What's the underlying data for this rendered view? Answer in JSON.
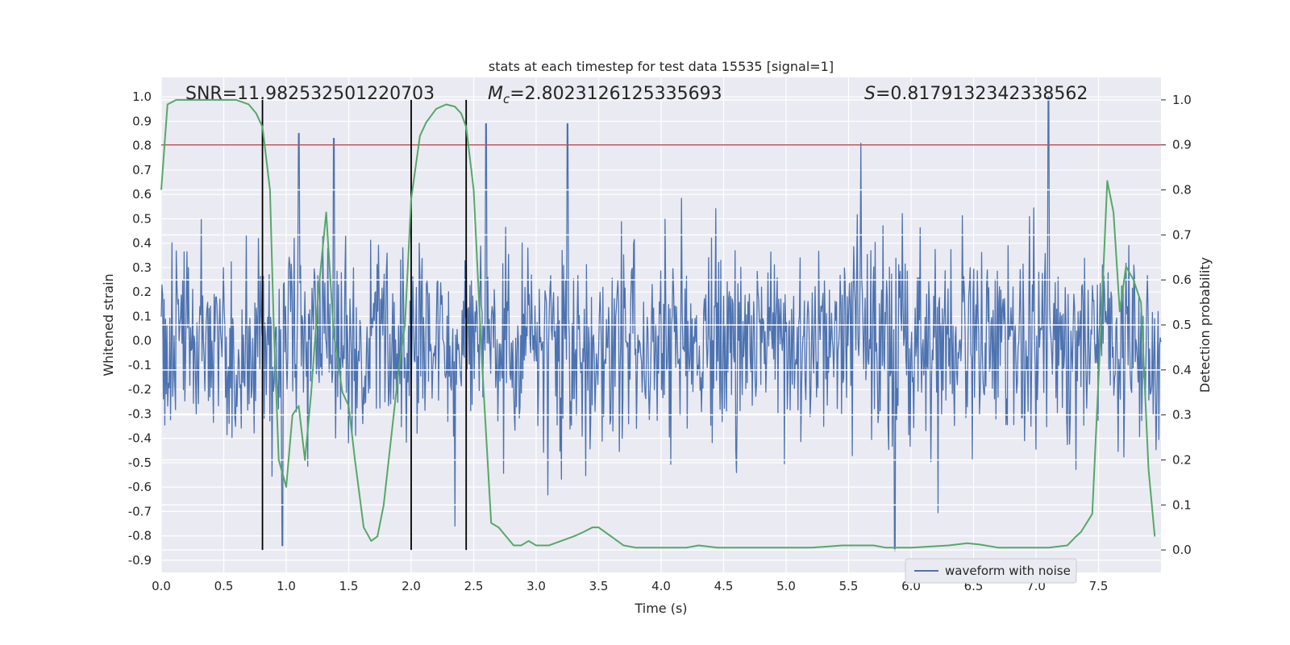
{
  "chart_data": {
    "type": "line",
    "title": "stats at each timestep for test data 15535 [signal=1]",
    "xlabel": "Time (s)",
    "ylabel_left": "Whitened strain",
    "ylabel_right": "Detection probability",
    "xlim": [
      0.0,
      8.0
    ],
    "ylim_left": [
      -0.95,
      1.08
    ],
    "ylim_right": [
      -0.05,
      1.05
    ],
    "x_ticks": [
      "0.0",
      "0.5",
      "1.0",
      "1.5",
      "2.0",
      "2.5",
      "3.0",
      "3.5",
      "4.0",
      "4.5",
      "5.0",
      "5.5",
      "6.0",
      "6.5",
      "7.0",
      "7.5"
    ],
    "y_ticks_left": [
      "1.0",
      "0.9",
      "0.8",
      "0.7",
      "0.6",
      "0.5",
      "0.4",
      "0.3",
      "0.2",
      "0.1",
      "0.0",
      "-0.1",
      "-0.2",
      "-0.3",
      "-0.4",
      "-0.5",
      "-0.6",
      "-0.7",
      "-0.8",
      "-0.9"
    ],
    "y_ticks_right": [
      "1.0",
      "0.9",
      "0.8",
      "0.7",
      "0.6",
      "0.5",
      "0.4",
      "0.3",
      "0.2",
      "0.1",
      "0.0"
    ],
    "annotations": {
      "snr": "SNR=11.982532501220703",
      "mc_symbol": "M",
      "mc_sub": "c",
      "mc_value": "=2.8023126125335693",
      "s_symbol": "S",
      "s_value": "=0.8179132342338562"
    },
    "threshold_probability": 0.9,
    "vertical_lines_time": [
      0.81,
      2.0,
      2.44
    ],
    "waveform": {
      "name": "waveform with noise",
      "color": "#4c72b0",
      "amplitude_peak": 1.0,
      "amplitude_min": -0.86,
      "n_samples": 1400,
      "peak_times": [
        1.1,
        1.38,
        2.6,
        3.25,
        5.6,
        7.1
      ],
      "peak_values": [
        0.85,
        0.83,
        0.89,
        0.89,
        0.81,
        1.0
      ],
      "trough_times": [
        0.97,
        2.35,
        5.87
      ],
      "trough_values": [
        -0.84,
        -0.76,
        -0.86
      ]
    },
    "probability": {
      "color": "#55a868",
      "t": [
        0.0,
        0.05,
        0.12,
        0.2,
        0.3,
        0.4,
        0.5,
        0.6,
        0.7,
        0.76,
        0.81,
        0.87,
        0.9,
        0.94,
        1.0,
        1.05,
        1.1,
        1.15,
        1.2,
        1.26,
        1.32,
        1.38,
        1.45,
        1.5,
        1.55,
        1.62,
        1.68,
        1.73,
        1.78,
        1.84,
        1.9,
        1.95,
        2.0,
        2.07,
        2.12,
        2.2,
        2.28,
        2.35,
        2.4,
        2.44,
        2.5,
        2.57,
        2.64,
        2.7,
        2.76,
        2.82,
        2.88,
        2.94,
        3.0,
        3.1,
        3.2,
        3.3,
        3.38,
        3.45,
        3.5,
        3.6,
        3.7,
        3.8,
        4.0,
        4.2,
        4.3,
        4.45,
        4.6,
        4.8,
        5.0,
        5.2,
        5.45,
        5.6,
        5.7,
        5.8,
        5.9,
        6.0,
        6.3,
        6.45,
        6.55,
        6.7,
        6.9,
        7.1,
        7.25,
        7.32,
        7.36,
        7.45,
        7.52,
        7.57,
        7.62,
        7.67,
        7.72,
        7.78,
        7.84,
        7.9,
        7.95
      ],
      "p": [
        0.8,
        0.99,
        1.0,
        1.0,
        1.0,
        1.0,
        1.0,
        1.0,
        0.99,
        0.97,
        0.94,
        0.8,
        0.5,
        0.2,
        0.14,
        0.3,
        0.32,
        0.2,
        0.35,
        0.58,
        0.75,
        0.48,
        0.35,
        0.32,
        0.2,
        0.05,
        0.02,
        0.03,
        0.1,
        0.25,
        0.4,
        0.5,
        0.78,
        0.92,
        0.95,
        0.98,
        0.99,
        0.985,
        0.97,
        0.94,
        0.8,
        0.4,
        0.06,
        0.05,
        0.03,
        0.01,
        0.01,
        0.02,
        0.01,
        0.01,
        0.02,
        0.03,
        0.04,
        0.05,
        0.05,
        0.03,
        0.01,
        0.005,
        0.005,
        0.005,
        0.01,
        0.005,
        0.005,
        0.005,
        0.005,
        0.005,
        0.01,
        0.01,
        0.01,
        0.005,
        0.005,
        0.005,
        0.01,
        0.015,
        0.012,
        0.005,
        0.005,
        0.005,
        0.01,
        0.03,
        0.04,
        0.08,
        0.5,
        0.82,
        0.75,
        0.53,
        0.63,
        0.6,
        0.55,
        0.18,
        0.03
      ]
    },
    "legend": {
      "placement": "lower-right",
      "entries": [
        "waveform with noise"
      ]
    },
    "colors": {
      "background": "#eaeaf2",
      "grid": "#ffffff",
      "threshold": "#c44e52",
      "vline": "#000000",
      "text": "#262626"
    }
  }
}
